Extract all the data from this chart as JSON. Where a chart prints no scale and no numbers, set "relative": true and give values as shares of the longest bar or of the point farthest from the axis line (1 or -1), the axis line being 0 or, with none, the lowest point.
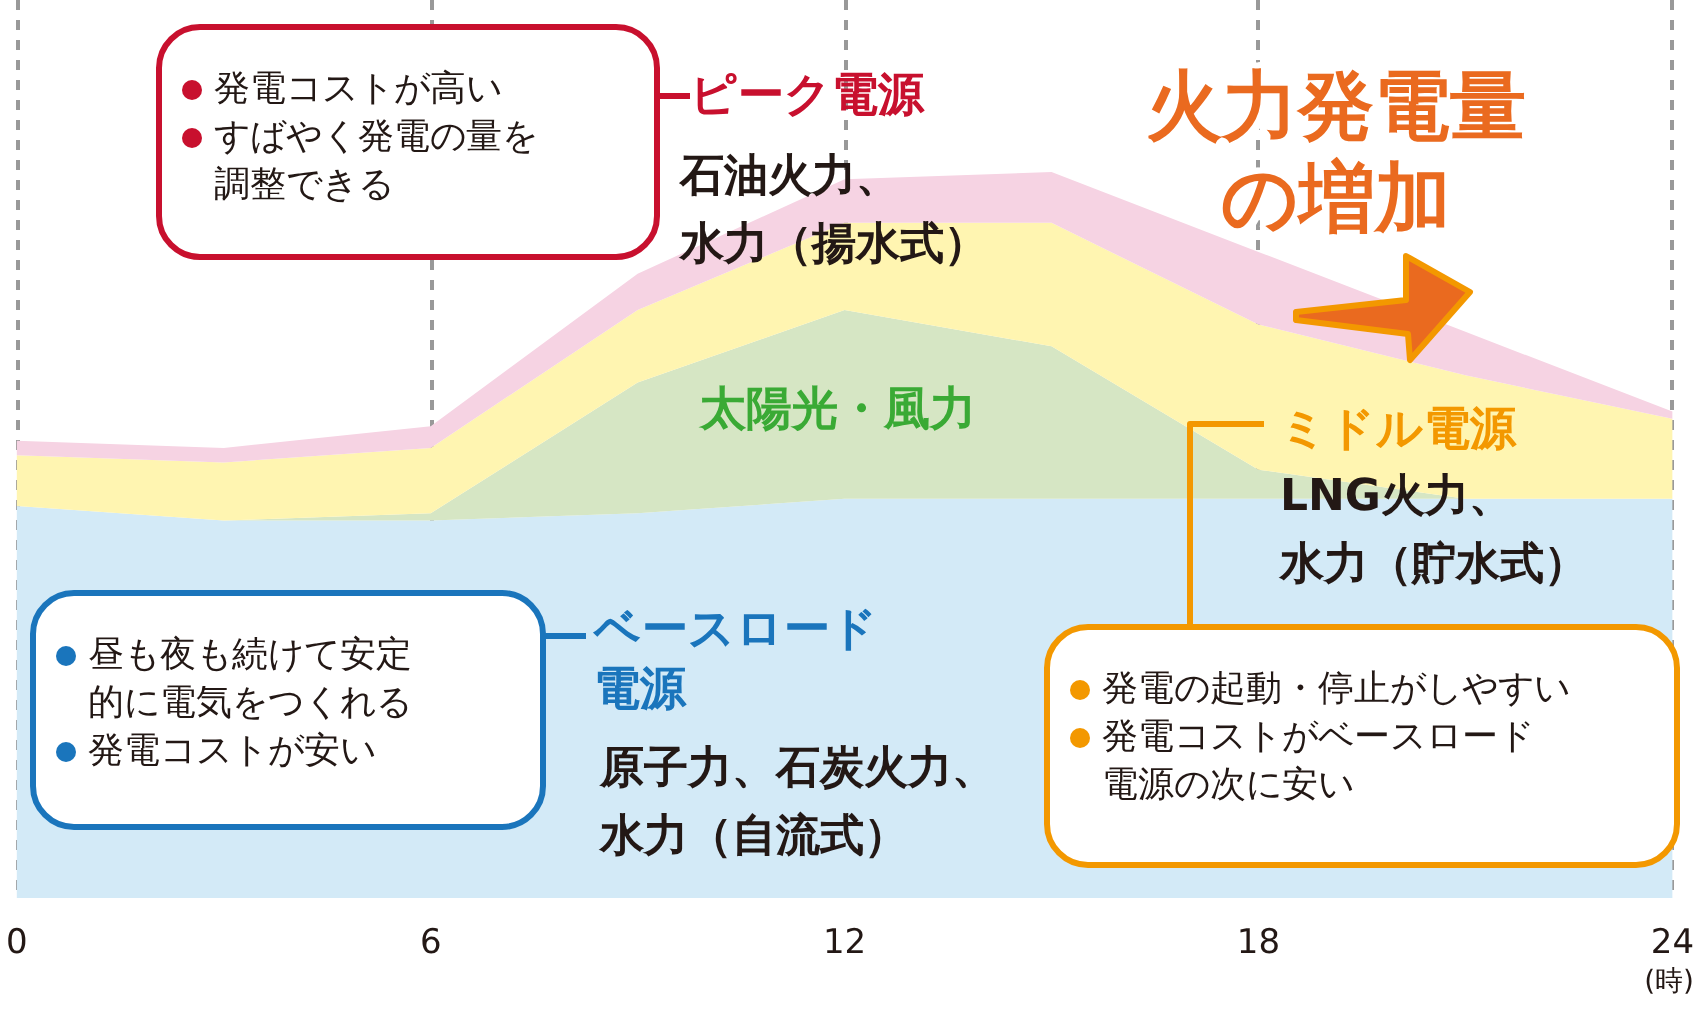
{
  "chart_data": {
    "type": "area",
    "stacked": true,
    "relative": true,
    "x": [
      0,
      3,
      6,
      9,
      12,
      15,
      18,
      21,
      24
    ],
    "xlim": [
      0,
      24
    ],
    "xticks": [
      0,
      6,
      12,
      18,
      24
    ],
    "xlabel": "(時)",
    "grid": "x",
    "series": [
      {
        "name": "ベースロード電源",
        "color": "#d3eaf7",
        "values": [
          0.54,
          0.52,
          0.52,
          0.53,
          0.55,
          0.55,
          0.55,
          0.55,
          0.55
        ]
      },
      {
        "name": "太陽光・風力",
        "color": "#d6e6c4",
        "values": [
          0,
          0,
          0.01,
          0.18,
          0.26,
          0.21,
          0.04,
          0,
          0
        ]
      },
      {
        "name": "ミドル電源",
        "color": "#fff5b1",
        "values": [
          0.07,
          0.08,
          0.09,
          0.1,
          0.12,
          0.17,
          0.2,
          0.17,
          0.11
        ]
      },
      {
        "name": "ピーク電源",
        "color": "#f6d3e3",
        "values": [
          0.02,
          0.02,
          0.03,
          0.05,
          0.06,
          0.07,
          0.1,
          0.06,
          0.01
        ]
      }
    ],
    "annotations": [
      "発電コストが高い",
      "すばやく発電の量を調整できる",
      "石油火力、水力（揚水式）",
      "火力発電量の増加",
      "LNG火力、水力（貯水式）",
      "発電の起動・停止がしやすい",
      "発電コストがベースロード電源の次に安い",
      "昼も夜も続けて安定的に電気をつくれる",
      "発電コストが安い",
      "原子力、石炭火力、水力（自流式）"
    ]
  }
}
